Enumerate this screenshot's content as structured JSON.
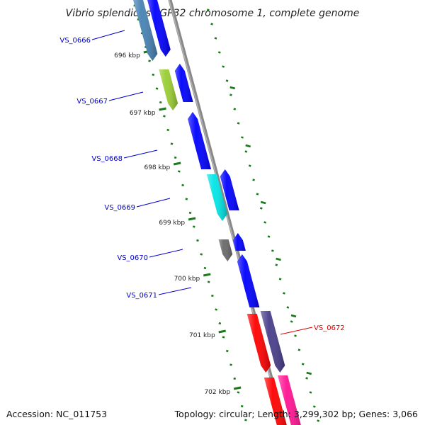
{
  "title": "Vibrio splendidus LGP32 chromosome 1, complete genome",
  "footer": {
    "accession": "Accession: NC_011753",
    "summary": "Topology: circular; Length: 3,299,302 bp; Genes: 3,066"
  },
  "tick_labels": [
    "696 kbp",
    "697 kbp",
    "698 kbp",
    "699 kbp",
    "700 kbp",
    "701 kbp",
    "702 kbp"
  ],
  "genes": [
    {
      "label": "VS_0666",
      "strand": "minus",
      "color": "#4682b4",
      "label_color": "#0000cc"
    },
    {
      "label": "VS_0667",
      "strand": "minus",
      "color": "#9acd32",
      "label_color": "#0000cc"
    },
    {
      "label": "VS_0668",
      "strand": "minus",
      "color": "#0000ff",
      "label_color": "#0000cc"
    },
    {
      "label": "VS_0669",
      "strand": "minus",
      "color": "#00e5e5",
      "label_color": "#0000cc"
    },
    {
      "label": "VS_0670",
      "strand": "minus",
      "color": "#696969",
      "label_color": "#0000cc"
    },
    {
      "label": "VS_0671",
      "strand": "minus",
      "color": "#0000ff",
      "label_color": "#0000cc"
    },
    {
      "label": "VS_0672",
      "strand": "plus",
      "color": "#ff0000",
      "label_color": "#dd0000"
    }
  ],
  "colors": {
    "backbone": "#888888",
    "tick": "#1a7a1a",
    "cds_minus": "#0000ff",
    "cds_plus_a": "#483d8b",
    "cds_plus_b": "#ff1493"
  }
}
